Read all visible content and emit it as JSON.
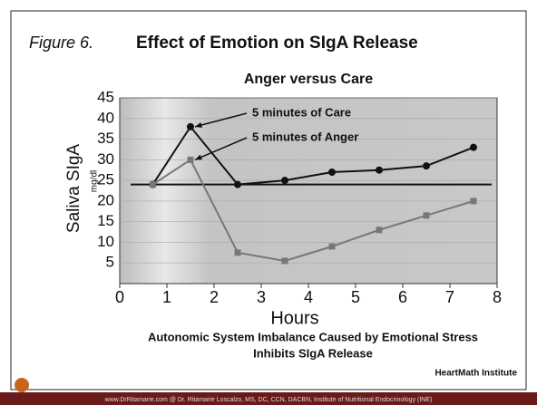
{
  "chart_data": {
    "type": "line",
    "figure_label": "Figure 6.",
    "title": "Effect of Emotion on SIgA Release",
    "subtitle": "Anger versus Care",
    "y_label": "Saliva SIgA",
    "y_unit": "mg/dl",
    "x_label": "Hours",
    "x": [
      0.7,
      1.5,
      2.5,
      3.5,
      4.5,
      5.5,
      6.5,
      7.5
    ],
    "series": [
      {
        "name": "5 minutes of Care",
        "color": "#111111",
        "marker": "circle",
        "values": [
          24,
          38,
          24,
          25,
          27,
          27.5,
          28.5,
          33
        ]
      },
      {
        "name": "5 minutes of Anger",
        "color": "#777777",
        "marker": "square",
        "values": [
          24,
          30,
          7.5,
          5.5,
          9,
          13,
          16.5,
          20
        ]
      }
    ],
    "reference_line": 24,
    "xlim": [
      0,
      8
    ],
    "xticks": [
      0,
      1,
      2,
      3,
      4,
      5,
      6,
      7,
      8
    ],
    "ylim": [
      0,
      45
    ],
    "yticks": [
      5,
      10,
      15,
      20,
      25,
      30,
      35,
      40,
      45
    ],
    "grid": true,
    "caption": [
      "Autonomic System Imbalance Caused by Emotional Stress",
      "Inhibits SIgA Release"
    ],
    "source": "HeartMath Institute",
    "footer": "www.DrRitamarie.com   @ Dr. Ritamarie Loscalzo, MS, DC, CCN, DACBN, Institute of Nutritional Endocrinology (INE)"
  }
}
